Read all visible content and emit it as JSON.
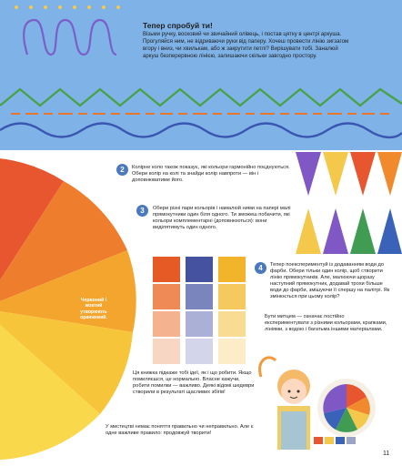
{
  "header": {
    "title": "Тепер спробуй ти!",
    "intro": "Візьми ручку, восковий чи звичайний олівець, і постав цятку в центрі аркуша. Прогуляйся ним, не відриваючи руки від паперу. Хочеш провести лінію зигзагом вгору і вниз, чи хвилькам, або ж закрутити петлі? Вирішувати тобі. Заналюй аркуш безперервною лінією, залишаючи скільки завгодно простору."
  },
  "wheel_label": "Червоний і жовтий утворюють оранжевий.",
  "steps": [
    {
      "number": "2",
      "text": "Колірне коло також показує, які кольори гармонійно поєднуються. Обери колір на колі та знайди колір навпроти — він і доповнюватиме його."
    },
    {
      "number": "3",
      "text": "Обери різні пари кольорів і намалюй ними на папері малі прямокутники один біля одного. Ти зможеш побачити, які кольори комплементарні (доповнюються): вони виділятимуть один одного."
    },
    {
      "number": "4",
      "text": "Тепер поекспериментуй із додаванням води до фарби. Обери тільки один колір, щоб створити лінію прямокутників. Але, малюючи щоразу наступний прямокутник, додавай трохи більше води до фарби, змішуючи її спершу на палітрі. Як змінюється при цьому колір?"
    }
  ],
  "artist_note": "Бути митцем — означає постійно експериментувати з різними кольорами, крапками, лініями, з водою і багатьма іншими матеріалами.",
  "encourage": "Ця книжка підкаже тобі ідеї, як і що робити. Якщо помиляєшся, це нормально. Власне кажучи, робити помилки — важливо. Деякі відомі шедеври створили в результаті щасливих збігів!",
  "closing": "У мистецтві немає поняття правильно чи неправильно. Але є одне важливе правило: продовжуй творити!",
  "page_number": "11",
  "colors": {
    "background_top": "#7fb3e8",
    "scribble": "#7b5fc7",
    "zigzag": "#49a24a",
    "dashes": "#e8762d",
    "wave": "#3a56b0",
    "step_badge": "#4a79bf"
  },
  "icons": {
    "scribble": "loop-scribble-illustration",
    "color_wheel": "color-wheel-illustration",
    "triangles": "triangle-pairs-illustration",
    "swatches": "paint-swatch-illustration",
    "girl": "girl-with-palette-illustration"
  }
}
